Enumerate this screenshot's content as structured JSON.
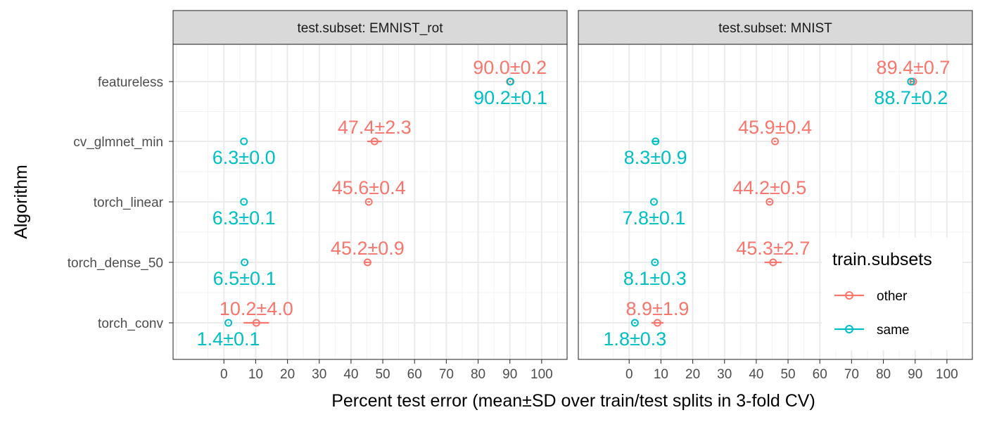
{
  "chart_data": {
    "type": "scatter",
    "xlabel": "Percent test error (mean±SD over train/test splits in 3-fold CV)",
    "ylabel": "Algorithm",
    "xlim": [
      -16,
      108
    ],
    "xticks": [
      0,
      10,
      20,
      30,
      40,
      50,
      60,
      70,
      80,
      90,
      100
    ],
    "categories": [
      "featureless",
      "cv_glmnet_min",
      "torch_linear",
      "torch_dense_50",
      "torch_conv"
    ],
    "grid": true,
    "legend": {
      "title": "train.subsets",
      "placement": "right",
      "entries": [
        {
          "name": "other",
          "color": "#F8766D"
        },
        {
          "name": "same",
          "color": "#00BFC4"
        }
      ]
    },
    "panels": [
      {
        "strip": "test.subset: EMNIST_rot",
        "series": [
          {
            "name": "other",
            "color": "#F8766D",
            "points": [
              {
                "algorithm": "featureless",
                "mean": 90.0,
                "sd": 0.2,
                "label": "90.0±0.2"
              },
              {
                "algorithm": "cv_glmnet_min",
                "mean": 47.4,
                "sd": 2.3,
                "label": "47.4±2.3"
              },
              {
                "algorithm": "torch_linear",
                "mean": 45.6,
                "sd": 0.4,
                "label": "45.6±0.4"
              },
              {
                "algorithm": "torch_dense_50",
                "mean": 45.2,
                "sd": 0.9,
                "label": "45.2±0.9"
              },
              {
                "algorithm": "torch_conv",
                "mean": 10.2,
                "sd": 4.0,
                "label": "10.2±4.0"
              }
            ]
          },
          {
            "name": "same",
            "color": "#00BFC4",
            "points": [
              {
                "algorithm": "featureless",
                "mean": 90.2,
                "sd": 0.1,
                "label": "90.2±0.1"
              },
              {
                "algorithm": "cv_glmnet_min",
                "mean": 6.3,
                "sd": 0.0,
                "label": "6.3±0.0"
              },
              {
                "algorithm": "torch_linear",
                "mean": 6.3,
                "sd": 0.1,
                "label": "6.3±0.1"
              },
              {
                "algorithm": "torch_dense_50",
                "mean": 6.5,
                "sd": 0.1,
                "label": "6.5±0.1"
              },
              {
                "algorithm": "torch_conv",
                "mean": 1.4,
                "sd": 0.1,
                "label": "1.4±0.1"
              }
            ]
          }
        ]
      },
      {
        "strip": "test.subset: MNIST",
        "series": [
          {
            "name": "other",
            "color": "#F8766D",
            "points": [
              {
                "algorithm": "featureless",
                "mean": 89.4,
                "sd": 0.7,
                "label": "89.4±0.7"
              },
              {
                "algorithm": "cv_glmnet_min",
                "mean": 45.9,
                "sd": 0.4,
                "label": "45.9±0.4"
              },
              {
                "algorithm": "torch_linear",
                "mean": 44.2,
                "sd": 0.5,
                "label": "44.2±0.5"
              },
              {
                "algorithm": "torch_dense_50",
                "mean": 45.3,
                "sd": 2.7,
                "label": "45.3±2.7"
              },
              {
                "algorithm": "torch_conv",
                "mean": 8.9,
                "sd": 1.9,
                "label": "8.9±1.9"
              }
            ]
          },
          {
            "name": "same",
            "color": "#00BFC4",
            "points": [
              {
                "algorithm": "featureless",
                "mean": 88.7,
                "sd": 0.2,
                "label": "88.7±0.2"
              },
              {
                "algorithm": "cv_glmnet_min",
                "mean": 8.3,
                "sd": 0.9,
                "label": "8.3±0.9"
              },
              {
                "algorithm": "torch_linear",
                "mean": 7.8,
                "sd": 0.1,
                "label": "7.8±0.1"
              },
              {
                "algorithm": "torch_dense_50",
                "mean": 8.1,
                "sd": 0.3,
                "label": "8.1±0.3"
              },
              {
                "algorithm": "torch_conv",
                "mean": 1.8,
                "sd": 0.3,
                "label": "1.8±0.3"
              }
            ]
          }
        ]
      }
    ]
  }
}
